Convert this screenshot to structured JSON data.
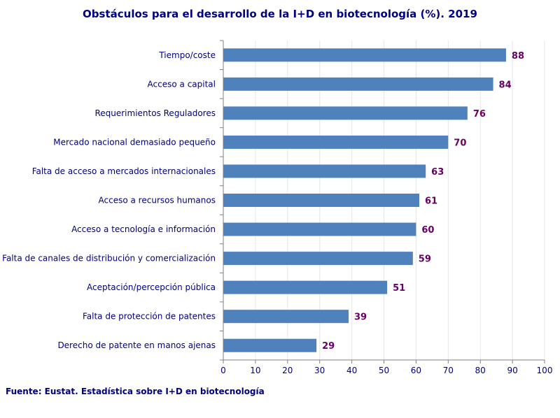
{
  "chart_data": {
    "type": "bar",
    "orientation": "horizontal",
    "title": "Obstáculos para el desarrollo de la I+D en biotecnología (%). 2019",
    "source": "Fuente: Eustat. Estadística sobre I+D en biotecnología",
    "categories": [
      "Tiempo/coste",
      "Acceso a capital",
      "Requerimientos Reguladores",
      "Mercado nacional demasiado pequeño",
      "Falta de acceso a mercados internacionales",
      "Acceso a recursos humanos",
      "Acceso a tecnología e información",
      "Falta de canales de distribución y comercialización",
      "Aceptación/percepción pública",
      "Falta de protección de patentes",
      "Derecho de patente en manos ajenas"
    ],
    "values": [
      88,
      84,
      76,
      70,
      63,
      61,
      60,
      59,
      51,
      39,
      29
    ],
    "xlim": [
      0,
      100
    ],
    "xticks": [
      0,
      10,
      20,
      30,
      40,
      50,
      60,
      70,
      80,
      90,
      100
    ],
    "grid": true,
    "colors": {
      "bar": "#4F81BD",
      "text": "#000080",
      "data_label": "#660066",
      "grid": "#E6E6E6",
      "axis": "#808080"
    }
  }
}
